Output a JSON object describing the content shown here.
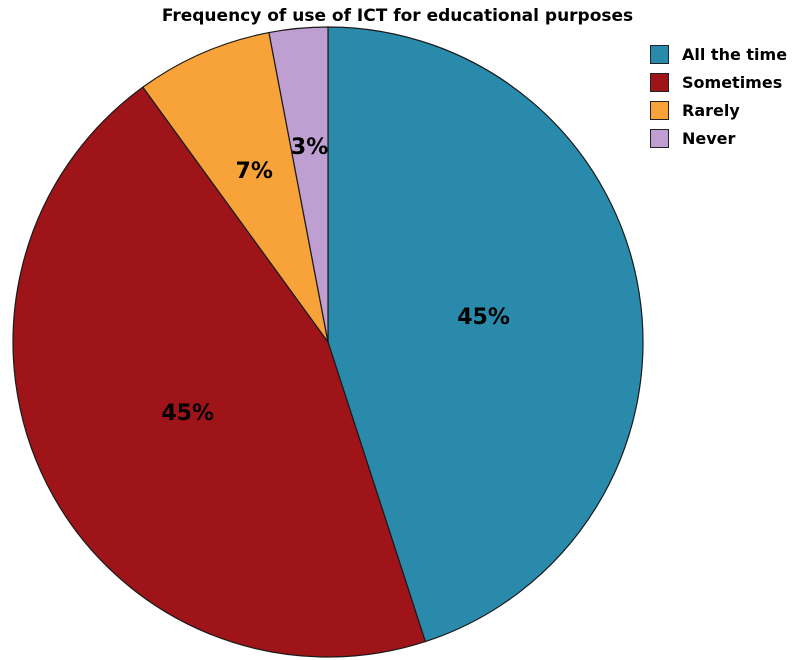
{
  "chart_data": {
    "type": "pie",
    "title": "Frequency of use of ICT for educational purposes",
    "categories": [
      "All the time",
      "Sometimes",
      "Rarely",
      "Never"
    ],
    "values": [
      45,
      45,
      7,
      3
    ],
    "value_labels": [
      "45%",
      "45%",
      "7%",
      "3%"
    ],
    "colors": [
      "#2a8aab",
      "#9e1418",
      "#f8a23a",
      "#bf9fd2"
    ],
    "legend_position": "top-right",
    "start": "12 o'clock",
    "direction": "clockwise"
  }
}
